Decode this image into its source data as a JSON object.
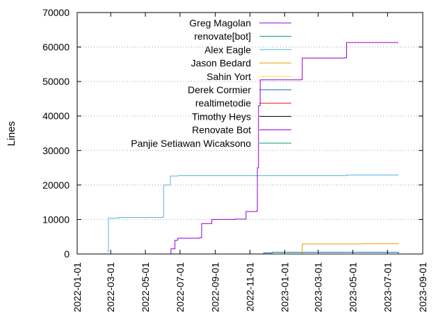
{
  "chart_data": {
    "type": "line",
    "ylabel": "Lines",
    "xlabel": "",
    "title": "",
    "x_range": [
      "2022-01-01",
      "2023-09-01"
    ],
    "ylim": [
      0,
      70000
    ],
    "x_ticks": [
      "2022-01-01",
      "2022-03-01",
      "2022-05-01",
      "2022-07-01",
      "2022-09-01",
      "2022-11-01",
      "2023-01-01",
      "2023-03-01",
      "2023-05-01",
      "2023-07-01",
      "2023-09-01"
    ],
    "y_ticks": [
      0,
      10000,
      20000,
      30000,
      40000,
      50000,
      60000,
      70000
    ],
    "y_tick_labels": [
      "0",
      "10000",
      "20000",
      "30000",
      "40000",
      "50000",
      "60000",
      "70000"
    ],
    "grid": "dotted, at y ticks",
    "legend_position": "top-left inside",
    "series": [
      {
        "name": "Greg Magolan",
        "color": "#9400d3",
        "step": true,
        "points": [
          [
            "2022-06-08",
            0
          ],
          [
            "2022-06-15",
            1500
          ],
          [
            "2022-06-22",
            4000
          ],
          [
            "2022-06-27",
            4600
          ],
          [
            "2022-08-04",
            4700
          ],
          [
            "2022-08-08",
            8800
          ],
          [
            "2022-08-24",
            8900
          ],
          [
            "2022-08-26",
            10000
          ],
          [
            "2022-10-06",
            10100
          ],
          [
            "2022-10-25",
            12300
          ],
          [
            "2022-11-12",
            12400
          ],
          [
            "2022-11-14",
            25000
          ],
          [
            "2022-11-16",
            43000
          ],
          [
            "2022-11-19",
            50500
          ],
          [
            "2023-01-31",
            50700
          ],
          [
            "2023-02-01",
            56800
          ],
          [
            "2023-04-17",
            56900
          ],
          [
            "2023-04-20",
            61300
          ],
          [
            "2023-07-20",
            61300
          ]
        ]
      },
      {
        "name": "renovate[bot]",
        "color": "#009e73",
        "step": true,
        "points": [
          [
            "2022-11-10",
            0
          ],
          [
            "2023-07-20",
            400
          ]
        ]
      },
      {
        "name": "Alex Eagle",
        "color": "#56b4e9",
        "step": true,
        "points": [
          [
            "2022-02-23",
            700
          ],
          [
            "2022-02-25",
            10400
          ],
          [
            "2022-03-15",
            10600
          ],
          [
            "2022-05-31",
            10700
          ],
          [
            "2022-06-02",
            20000
          ],
          [
            "2022-06-14",
            22600
          ],
          [
            "2022-06-28",
            22700
          ],
          [
            "2023-04-20",
            22900
          ],
          [
            "2023-07-20",
            23000
          ]
        ]
      },
      {
        "name": "Jason Bedard",
        "color": "#e69f00",
        "step": true,
        "points": [
          [
            "2023-01-31",
            0
          ],
          [
            "2023-02-01",
            2900
          ],
          [
            "2023-05-20",
            3000
          ],
          [
            "2023-07-20",
            3100
          ]
        ]
      },
      {
        "name": "Sahin Yort",
        "color": "#f0e442",
        "step": true,
        "points": [
          [
            "2022-11-15",
            0
          ],
          [
            "2023-07-20",
            100
          ]
        ]
      },
      {
        "name": "Derek Cormier",
        "color": "#0072b2",
        "step": true,
        "points": [
          [
            "2022-11-10",
            0
          ],
          [
            "2022-11-25",
            300
          ],
          [
            "2022-12-10",
            500
          ],
          [
            "2023-07-20",
            600
          ]
        ]
      },
      {
        "name": "realtimetodie",
        "color": "#e51e10",
        "step": true,
        "points": [
          [
            "2022-11-20",
            0
          ],
          [
            "2023-07-20",
            200
          ]
        ]
      },
      {
        "name": "Timothy Heys",
        "color": "#000000",
        "step": true,
        "points": [
          [
            "2022-11-20",
            0
          ],
          [
            "2023-07-20",
            100
          ]
        ]
      },
      {
        "name": "Renovate Bot",
        "color": "#9400d3",
        "step": true,
        "points": [
          [
            "2022-11-10",
            0
          ],
          [
            "2023-07-20",
            300
          ]
        ]
      },
      {
        "name": "Panjie Setiawan Wicaksono",
        "color": "#009e73",
        "step": true,
        "points": [
          [
            "2022-12-01",
            0
          ],
          [
            "2023-07-20",
            100
          ]
        ]
      }
    ]
  }
}
